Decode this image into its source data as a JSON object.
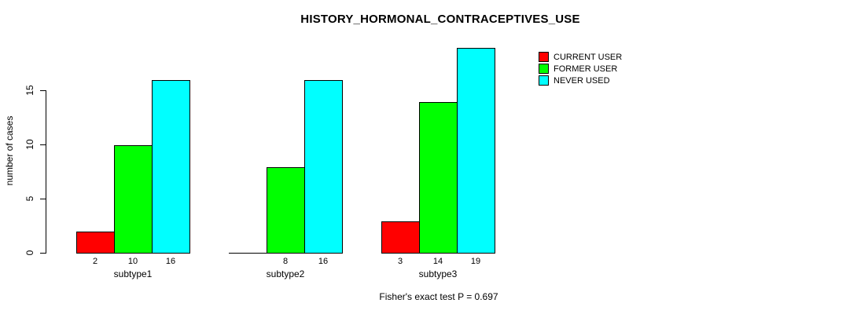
{
  "chart_data": {
    "type": "bar",
    "title": "HISTORY_HORMONAL_CONTRACEPTIVES_USE",
    "categories": [
      "subtype1",
      "subtype2",
      "subtype3"
    ],
    "series": [
      {
        "name": "CURRENT USER",
        "color": "#FF0000",
        "values": [
          2,
          0,
          3
        ]
      },
      {
        "name": "FORMER USER",
        "color": "#00FF00",
        "values": [
          10,
          8,
          14
        ]
      },
      {
        "name": "NEVER USED",
        "color": "#00FFFF",
        "values": [
          16,
          16,
          19
        ]
      }
    ],
    "xlabel": "",
    "ylabel": "number of cases",
    "ylim": [
      0,
      19
    ],
    "y_ticks": [
      0,
      5,
      10,
      15
    ],
    "grid": false,
    "legend_position": "top-right",
    "bar_value_labels_shown": true,
    "zero_value_labels_hidden": true,
    "annotation": "Fisher's exact test P = 0.697"
  }
}
